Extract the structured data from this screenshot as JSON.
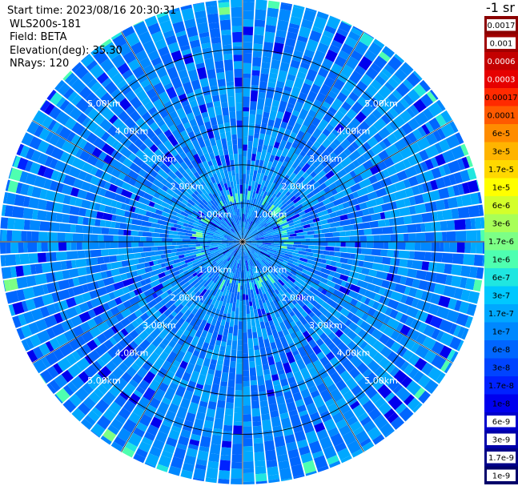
{
  "header": {
    "start_time": "Start time: 2023/08/16 20:30:31",
    "device": "WLS200s-181",
    "field": "Field: BETA",
    "elevation": "Elevation(deg): 35.30",
    "nrays": "NRays: 120"
  },
  "colorbar": {
    "unit_label": "-1 sr",
    "labels": [
      "0.0017",
      "0.001",
      "0.0006",
      "0.0003",
      "0.00017",
      "0.0001",
      "6e-5",
      "3e-5",
      "1.7e-5",
      "1e-5",
      "6e-6",
      "3e-6",
      "1.7e-6",
      "1e-6",
      "6e-7",
      "3e-7",
      "1.7e-7",
      "1e-7",
      "6e-8",
      "3e-8",
      "1.7e-8",
      "1e-8",
      "6e-9",
      "3e-9",
      "1.7e-9",
      "1e-9"
    ],
    "colors": [
      "#8b0000",
      "#a00000",
      "#c40000",
      "#e60000",
      "#ff2a00",
      "#ff5a00",
      "#ff8c00",
      "#ffb400",
      "#ffd800",
      "#ffff00",
      "#d4ff2a",
      "#a8ff58",
      "#7cff86",
      "#4effb0",
      "#20e6e0",
      "#00c8ff",
      "#00a8ff",
      "#0088ff",
      "#0066ff",
      "#0044ff",
      "#0022ff",
      "#0000ee",
      "#0000cc",
      "#0000aa",
      "#000088",
      "#00006a"
    ]
  },
  "chart_data": {
    "type": "heatmap",
    "projection": "polar-ppi",
    "n_rays": 120,
    "range_rings_km": [
      1,
      2,
      3,
      4,
      5
    ],
    "range_labels": [
      "1.00km",
      "2.00km",
      "3.00km",
      "4.00km",
      "5.00km"
    ],
    "max_range_km": 6.3,
    "azimuth_gridline_step_deg": 30,
    "color_scale": "log",
    "color_min": 1e-09,
    "color_max": 0.0017,
    "dominant_value_range": [
      6e-08,
      3e-07
    ],
    "enhanced_ring_km": [
      1.0,
      1.1
    ],
    "enhanced_ring_value": 3e-06
  }
}
